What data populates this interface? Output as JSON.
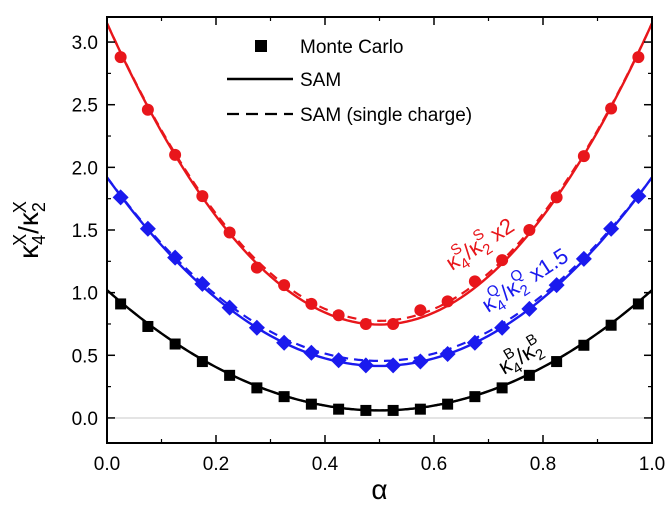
{
  "chart_data": {
    "type": "scatter",
    "xlabel": "α",
    "ylabel": {
      "base": "κ",
      "sub1": "4",
      "sup1": "X",
      "slash": "/",
      "sub2": "2",
      "sup2": "X"
    },
    "xlim": [
      0.0,
      1.0
    ],
    "ylim": [
      -0.2,
      3.2
    ],
    "x_ticks": [
      "0.0",
      "0.2",
      "0.4",
      "0.6",
      "0.8",
      "1.0"
    ],
    "y_ticks": [
      "0.0",
      "0.5",
      "1.0",
      "1.5",
      "2.0",
      "2.5",
      "3.0"
    ],
    "grid": false,
    "zero_line": true,
    "legend": {
      "placement": "top-left",
      "entries": [
        {
          "label": "Monte Carlo",
          "style": "marker"
        },
        {
          "label": "SAM",
          "style": "solid"
        },
        {
          "label": "SAM (single charge)",
          "style": "dashed"
        }
      ]
    },
    "series": [
      {
        "id": "S",
        "label": {
          "sub1": "4",
          "sup1": "S",
          "sub2": "2",
          "sup2": "S",
          "factor": " x2"
        },
        "color": "#e8161b",
        "marker": "circle",
        "x": [
          0.025,
          0.075,
          0.125,
          0.175,
          0.225,
          0.275,
          0.325,
          0.375,
          0.425,
          0.475,
          0.525,
          0.575,
          0.625,
          0.675,
          0.725,
          0.775,
          0.825,
          0.875,
          0.925,
          0.975
        ],
        "y": [
          2.88,
          2.46,
          2.1,
          1.77,
          1.48,
          1.2,
          1.06,
          0.91,
          0.82,
          0.75,
          0.75,
          0.86,
          0.93,
          1.09,
          1.26,
          1.5,
          1.76,
          2.09,
          2.47,
          2.88
        ],
        "sam": {
          "center": 0.5,
          "min": 0.745,
          "edge": 3.15
        },
        "sam_single": {
          "center": 0.5,
          "min": 0.775,
          "edge": 3.15
        }
      },
      {
        "id": "Q",
        "label": {
          "sub1": "4",
          "sup1": "Q",
          "sub2": "2",
          "sup2": "Q",
          "factor": " x1.5"
        },
        "color": "#1a1aee",
        "marker": "diamond",
        "x": [
          0.025,
          0.075,
          0.125,
          0.175,
          0.225,
          0.275,
          0.325,
          0.375,
          0.425,
          0.475,
          0.525,
          0.575,
          0.625,
          0.675,
          0.725,
          0.775,
          0.825,
          0.875,
          0.925,
          0.975
        ],
        "y": [
          1.76,
          1.51,
          1.28,
          1.07,
          0.88,
          0.72,
          0.6,
          0.52,
          0.46,
          0.42,
          0.42,
          0.45,
          0.51,
          0.6,
          0.72,
          0.87,
          1.06,
          1.27,
          1.51,
          1.77
        ],
        "sam": {
          "center": 0.5,
          "min": 0.415,
          "edge": 1.92
        },
        "sam_single": {
          "center": 0.5,
          "min": 0.455,
          "edge": 1.92
        }
      },
      {
        "id": "B",
        "label": {
          "sub1": "4",
          "sup1": "B",
          "sub2": "2",
          "sup2": "B",
          "factor": ""
        },
        "color": "#000000",
        "marker": "square",
        "x": [
          0.025,
          0.075,
          0.125,
          0.175,
          0.225,
          0.275,
          0.325,
          0.375,
          0.425,
          0.475,
          0.525,
          0.575,
          0.625,
          0.675,
          0.725,
          0.775,
          0.825,
          0.875,
          0.925,
          0.975
        ],
        "y": [
          0.91,
          0.73,
          0.59,
          0.45,
          0.34,
          0.24,
          0.17,
          0.11,
          0.07,
          0.06,
          0.06,
          0.07,
          0.11,
          0.17,
          0.24,
          0.34,
          0.45,
          0.58,
          0.74,
          0.91
        ],
        "sam": {
          "center": 0.5,
          "min": 0.06,
          "edge": 1.02
        },
        "sam_single": {
          "center": 0.5,
          "min": 0.06,
          "edge": 1.02
        }
      }
    ]
  }
}
